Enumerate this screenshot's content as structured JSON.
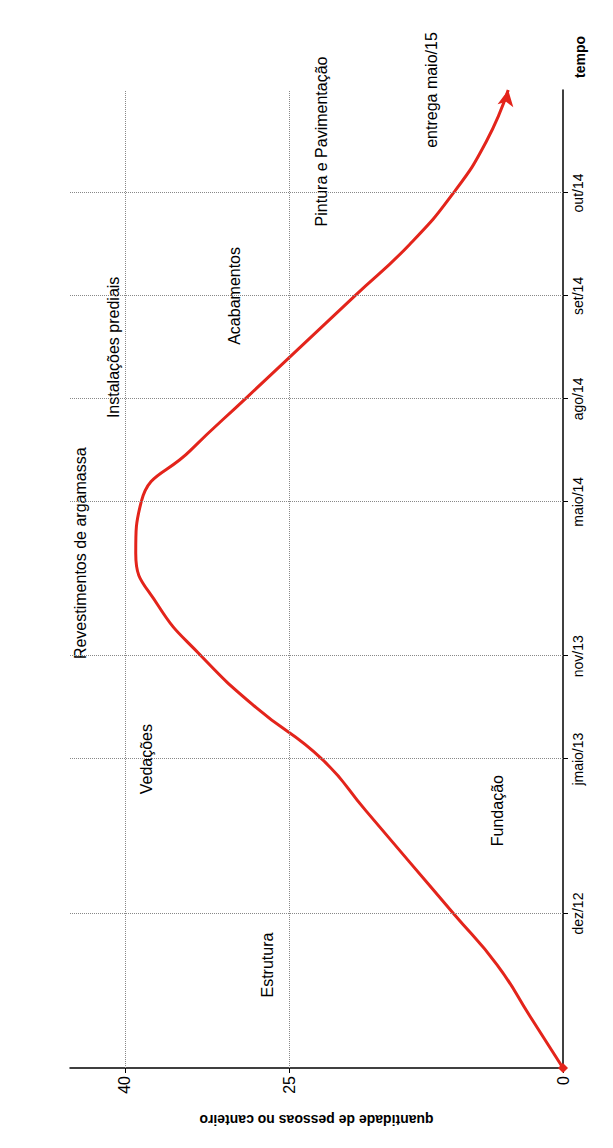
{
  "chart_data": {
    "type": "line",
    "categories": [
      null,
      null,
      null,
      "dez/12",
      null,
      null,
      "jmaio/13",
      null,
      "nov/13",
      null,
      null,
      "maio/14",
      null,
      "ago/14",
      null,
      "set/14",
      null,
      "out/14",
      null,
      null
    ],
    "values": [
      0,
      3,
      6,
      10,
      14,
      18,
      22,
      28,
      33,
      37,
      39,
      38.5,
      34,
      29,
      24,
      19,
      14,
      10,
      7,
      5
    ],
    "color": "#e3241b",
    "x_label": "tempo",
    "y_label": "quantidade de pessoas no canteiro",
    "ylim": [
      0,
      45
    ],
    "yticks": [
      0,
      25,
      40
    ],
    "grid": true,
    "annotations": [
      "Fundação",
      "Estrutura",
      "Vedações",
      "Revestimentos de argamassa",
      "Instalações prediais",
      "Acabamentos",
      "Pintura e Pavimentação",
      "entrega maio/15"
    ]
  }
}
